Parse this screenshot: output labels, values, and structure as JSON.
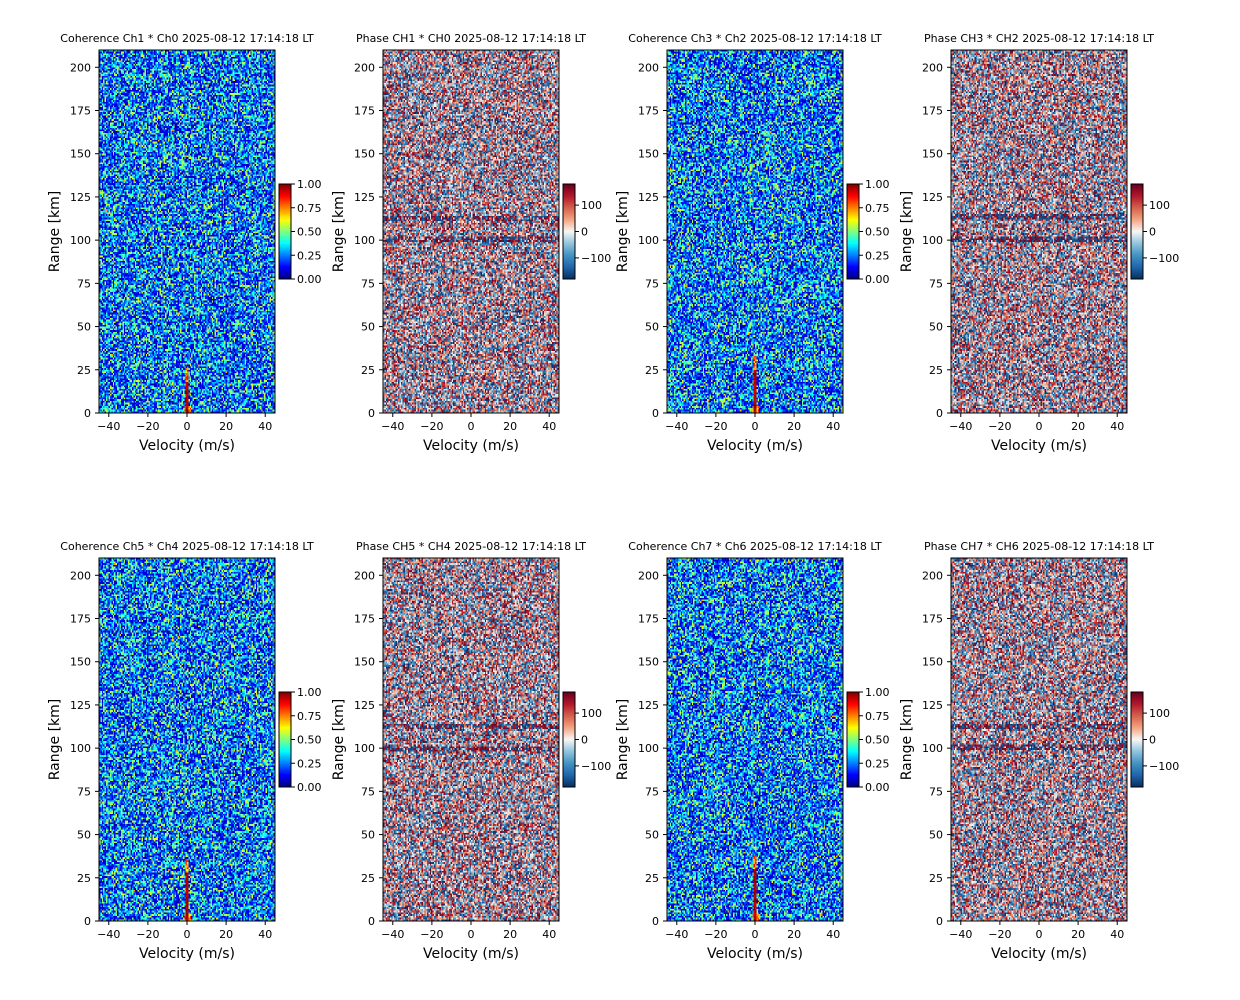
{
  "chart_data": [
    {
      "type": "heatmap",
      "kind": "coherence",
      "title": "Coherence Ch1 * Ch0 2025-08-12 17:14:18 LT",
      "xlabel": "Velocity (m/s)",
      "ylabel": "Range [km]",
      "xlim": [
        -45,
        45
      ],
      "ylim": [
        0,
        210
      ],
      "xticks": [
        -40,
        -20,
        0,
        20,
        40
      ],
      "yticks": [
        0,
        25,
        50,
        75,
        100,
        125,
        150,
        175,
        200
      ],
      "colorbar": {
        "colormap": "jet",
        "range": [
          0,
          1
        ],
        "ticks": [
          "0.00",
          "0.25",
          "0.50",
          "0.75",
          "1.00"
        ]
      },
      "features": "background coherence ~0.25, strong coherence (~1.0) at velocity 0 for ranges 0-18 km"
    },
    {
      "type": "heatmap",
      "kind": "phase",
      "title": "Phase CH1 * CH0 2025-08-12 17:14:18 LT",
      "xlabel": "Velocity (m/s)",
      "ylabel": "Range [km]",
      "xlim": [
        -45,
        45
      ],
      "ylim": [
        0,
        210
      ],
      "xticks": [
        -40,
        -20,
        0,
        20,
        40
      ],
      "yticks": [
        0,
        25,
        50,
        75,
        100,
        125,
        150,
        175,
        200
      ],
      "colorbar": {
        "colormap": "RdBu_r",
        "range": [
          -180,
          180
        ],
        "ticks": [
          "−100",
          "0",
          "100"
        ]
      },
      "features": "random phase noise, faint bands near 112 km and 100 km"
    },
    {
      "type": "heatmap",
      "kind": "coherence",
      "title": "Coherence Ch3 * Ch2 2025-08-12 17:14:18 LT",
      "xlabel": "Velocity (m/s)",
      "ylabel": "Range [km]",
      "xlim": [
        -45,
        45
      ],
      "ylim": [
        0,
        210
      ],
      "xticks": [
        -40,
        -20,
        0,
        20,
        40
      ],
      "yticks": [
        0,
        25,
        50,
        75,
        100,
        125,
        150,
        175,
        200
      ],
      "colorbar": {
        "colormap": "jet",
        "range": [
          0,
          1
        ],
        "ticks": [
          "0.00",
          "0.25",
          "0.50",
          "0.75",
          "1.00"
        ]
      },
      "features": "background coherence ~0.25, strong coherence at velocity 0 for ranges 0-25 km"
    },
    {
      "type": "heatmap",
      "kind": "phase",
      "title": "Phase CH3 * CH2 2025-08-12 17:14:18 LT",
      "xlabel": "Velocity (m/s)",
      "ylabel": "Range [km]",
      "xlim": [
        -45,
        45
      ],
      "ylim": [
        0,
        210
      ],
      "xticks": [
        -40,
        -20,
        0,
        20,
        40
      ],
      "yticks": [
        0,
        25,
        50,
        75,
        100,
        125,
        150,
        175,
        200
      ],
      "colorbar": {
        "colormap": "RdBu_r",
        "range": [
          -180,
          180
        ],
        "ticks": [
          "−100",
          "0",
          "100"
        ]
      },
      "features": "random phase noise, bands near 113 km and 100 km"
    },
    {
      "type": "heatmap",
      "kind": "coherence",
      "title": "Coherence Ch5 * Ch4 2025-08-12 17:14:18 LT",
      "xlabel": "Velocity (m/s)",
      "ylabel": "Range [km]",
      "xlim": [
        -45,
        45
      ],
      "ylim": [
        0,
        210
      ],
      "xticks": [
        -40,
        -20,
        0,
        20,
        40
      ],
      "yticks": [
        0,
        25,
        50,
        75,
        100,
        125,
        150,
        175,
        200
      ],
      "colorbar": {
        "colormap": "jet",
        "range": [
          0,
          1
        ],
        "ticks": [
          "0.00",
          "0.25",
          "0.50",
          "0.75",
          "1.00"
        ]
      },
      "features": "background coherence ~0.25, strong coherence at velocity 0 for ranges 0-28 km"
    },
    {
      "type": "heatmap",
      "kind": "phase",
      "title": "Phase CH5 * CH4 2025-08-12 17:14:18 LT",
      "xlabel": "Velocity (m/s)",
      "ylabel": "Range [km]",
      "xlim": [
        -45,
        45
      ],
      "ylim": [
        0,
        210
      ],
      "xticks": [
        -40,
        -20,
        0,
        20,
        40
      ],
      "yticks": [
        0,
        25,
        50,
        75,
        100,
        125,
        150,
        175,
        200
      ],
      "colorbar": {
        "colormap": "RdBu_r",
        "range": [
          -180,
          180
        ],
        "ticks": [
          "−100",
          "0",
          "100"
        ]
      },
      "features": "random phase noise, dark bands near 112 km and 99 km"
    },
    {
      "type": "heatmap",
      "kind": "coherence",
      "title": "Coherence Ch7 * Ch6 2025-08-12 17:14:18 LT",
      "xlabel": "Velocity (m/s)",
      "ylabel": "Range [km]",
      "xlim": [
        -45,
        45
      ],
      "ylim": [
        0,
        210
      ],
      "xticks": [
        -40,
        -20,
        0,
        20,
        40
      ],
      "yticks": [
        0,
        25,
        50,
        75,
        100,
        125,
        150,
        175,
        200
      ],
      "colorbar": {
        "colormap": "jet",
        "range": [
          0,
          1
        ],
        "ticks": [
          "0.00",
          "0.25",
          "0.50",
          "0.75",
          "1.00"
        ]
      },
      "features": "background coherence ~0.25, strong coherence at velocity 0 for ranges 0-30 km"
    },
    {
      "type": "heatmap",
      "kind": "phase",
      "title": "Phase CH7 * CH6 2025-08-12 17:14:18 LT",
      "xlabel": "Velocity (m/s)",
      "ylabel": "Range [km]",
      "xlim": [
        -45,
        45
      ],
      "ylim": [
        0,
        210
      ],
      "xticks": [
        -40,
        -20,
        0,
        20,
        40
      ],
      "yticks": [
        0,
        25,
        50,
        75,
        100,
        125,
        150,
        175,
        200
      ],
      "colorbar": {
        "colormap": "RdBu_r",
        "range": [
          -180,
          180
        ],
        "ticks": [
          "−100",
          "0",
          "100"
        ]
      },
      "features": "random phase noise, faint bands near 112 km and 100 km"
    }
  ]
}
